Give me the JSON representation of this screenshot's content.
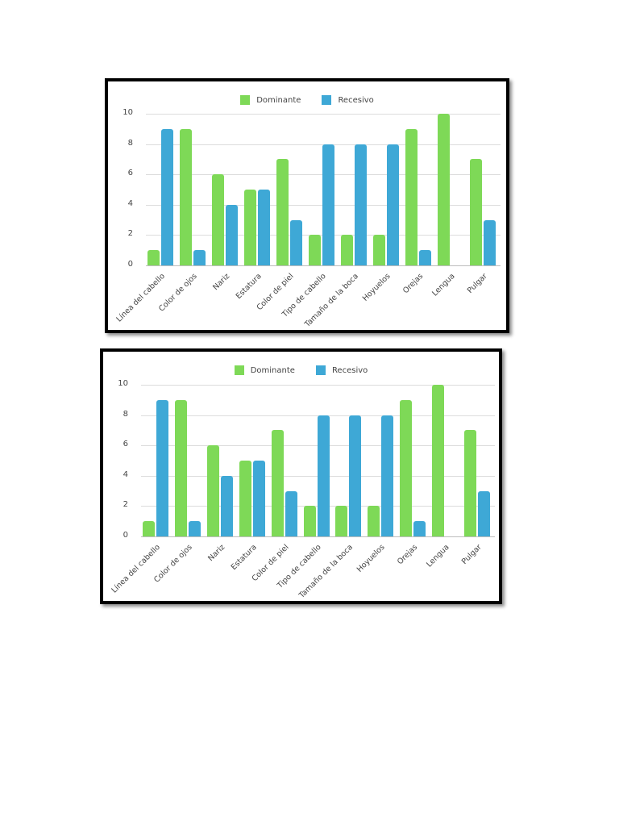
{
  "colors": {
    "dominante": "#7ed957",
    "recesivo": "#3ea8d6"
  },
  "legend": [
    {
      "label": "Dominante",
      "color": "#7ed957"
    },
    {
      "label": "Recesivo",
      "color": "#3ea8d6"
    }
  ],
  "chart_data": [
    {
      "type": "bar",
      "title": "",
      "xlabel": "",
      "ylabel": "",
      "ylim": [
        0,
        10
      ],
      "yticks": [
        0,
        2,
        4,
        6,
        8,
        10
      ],
      "grid": true,
      "legend_position": "top",
      "categories": [
        "Línea del cabello",
        "Color de ojos",
        "Nariz",
        "Estatura",
        "Color de piel",
        "Tipo de cabello",
        "Tamaño de la boca",
        "Hoyuelos",
        "Orejas",
        "Lengua",
        "Pulgar"
      ],
      "series": [
        {
          "name": "Dominante",
          "color": "#7ed957",
          "values": [
            1,
            9,
            6,
            5,
            7,
            2,
            2,
            2,
            9,
            10,
            7
          ]
        },
        {
          "name": "Recesivo",
          "color": "#3ea8d6",
          "values": [
            9,
            1,
            4,
            5,
            3,
            8,
            8,
            8,
            1,
            0,
            3
          ]
        }
      ]
    },
    {
      "type": "bar",
      "title": "",
      "xlabel": "",
      "ylabel": "",
      "ylim": [
        0,
        10
      ],
      "yticks": [
        0,
        2,
        4,
        6,
        8,
        10
      ],
      "grid": true,
      "legend_position": "top",
      "categories": [
        "Línea del cabello",
        "Color de ojos",
        "Nariz",
        "Estatura",
        "Color de piel",
        "Tipo de cabello",
        "Tamaño de la boca",
        "Hoyuelos",
        "Orejas",
        "Lengua",
        "Pulgar"
      ],
      "series": [
        {
          "name": "Dominante",
          "color": "#7ed957",
          "values": [
            1,
            9,
            6,
            5,
            7,
            2,
            2,
            2,
            9,
            10,
            7
          ]
        },
        {
          "name": "Recesivo",
          "color": "#3ea8d6",
          "values": [
            9,
            1,
            4,
            5,
            3,
            8,
            8,
            8,
            1,
            0,
            3
          ]
        }
      ]
    }
  ]
}
